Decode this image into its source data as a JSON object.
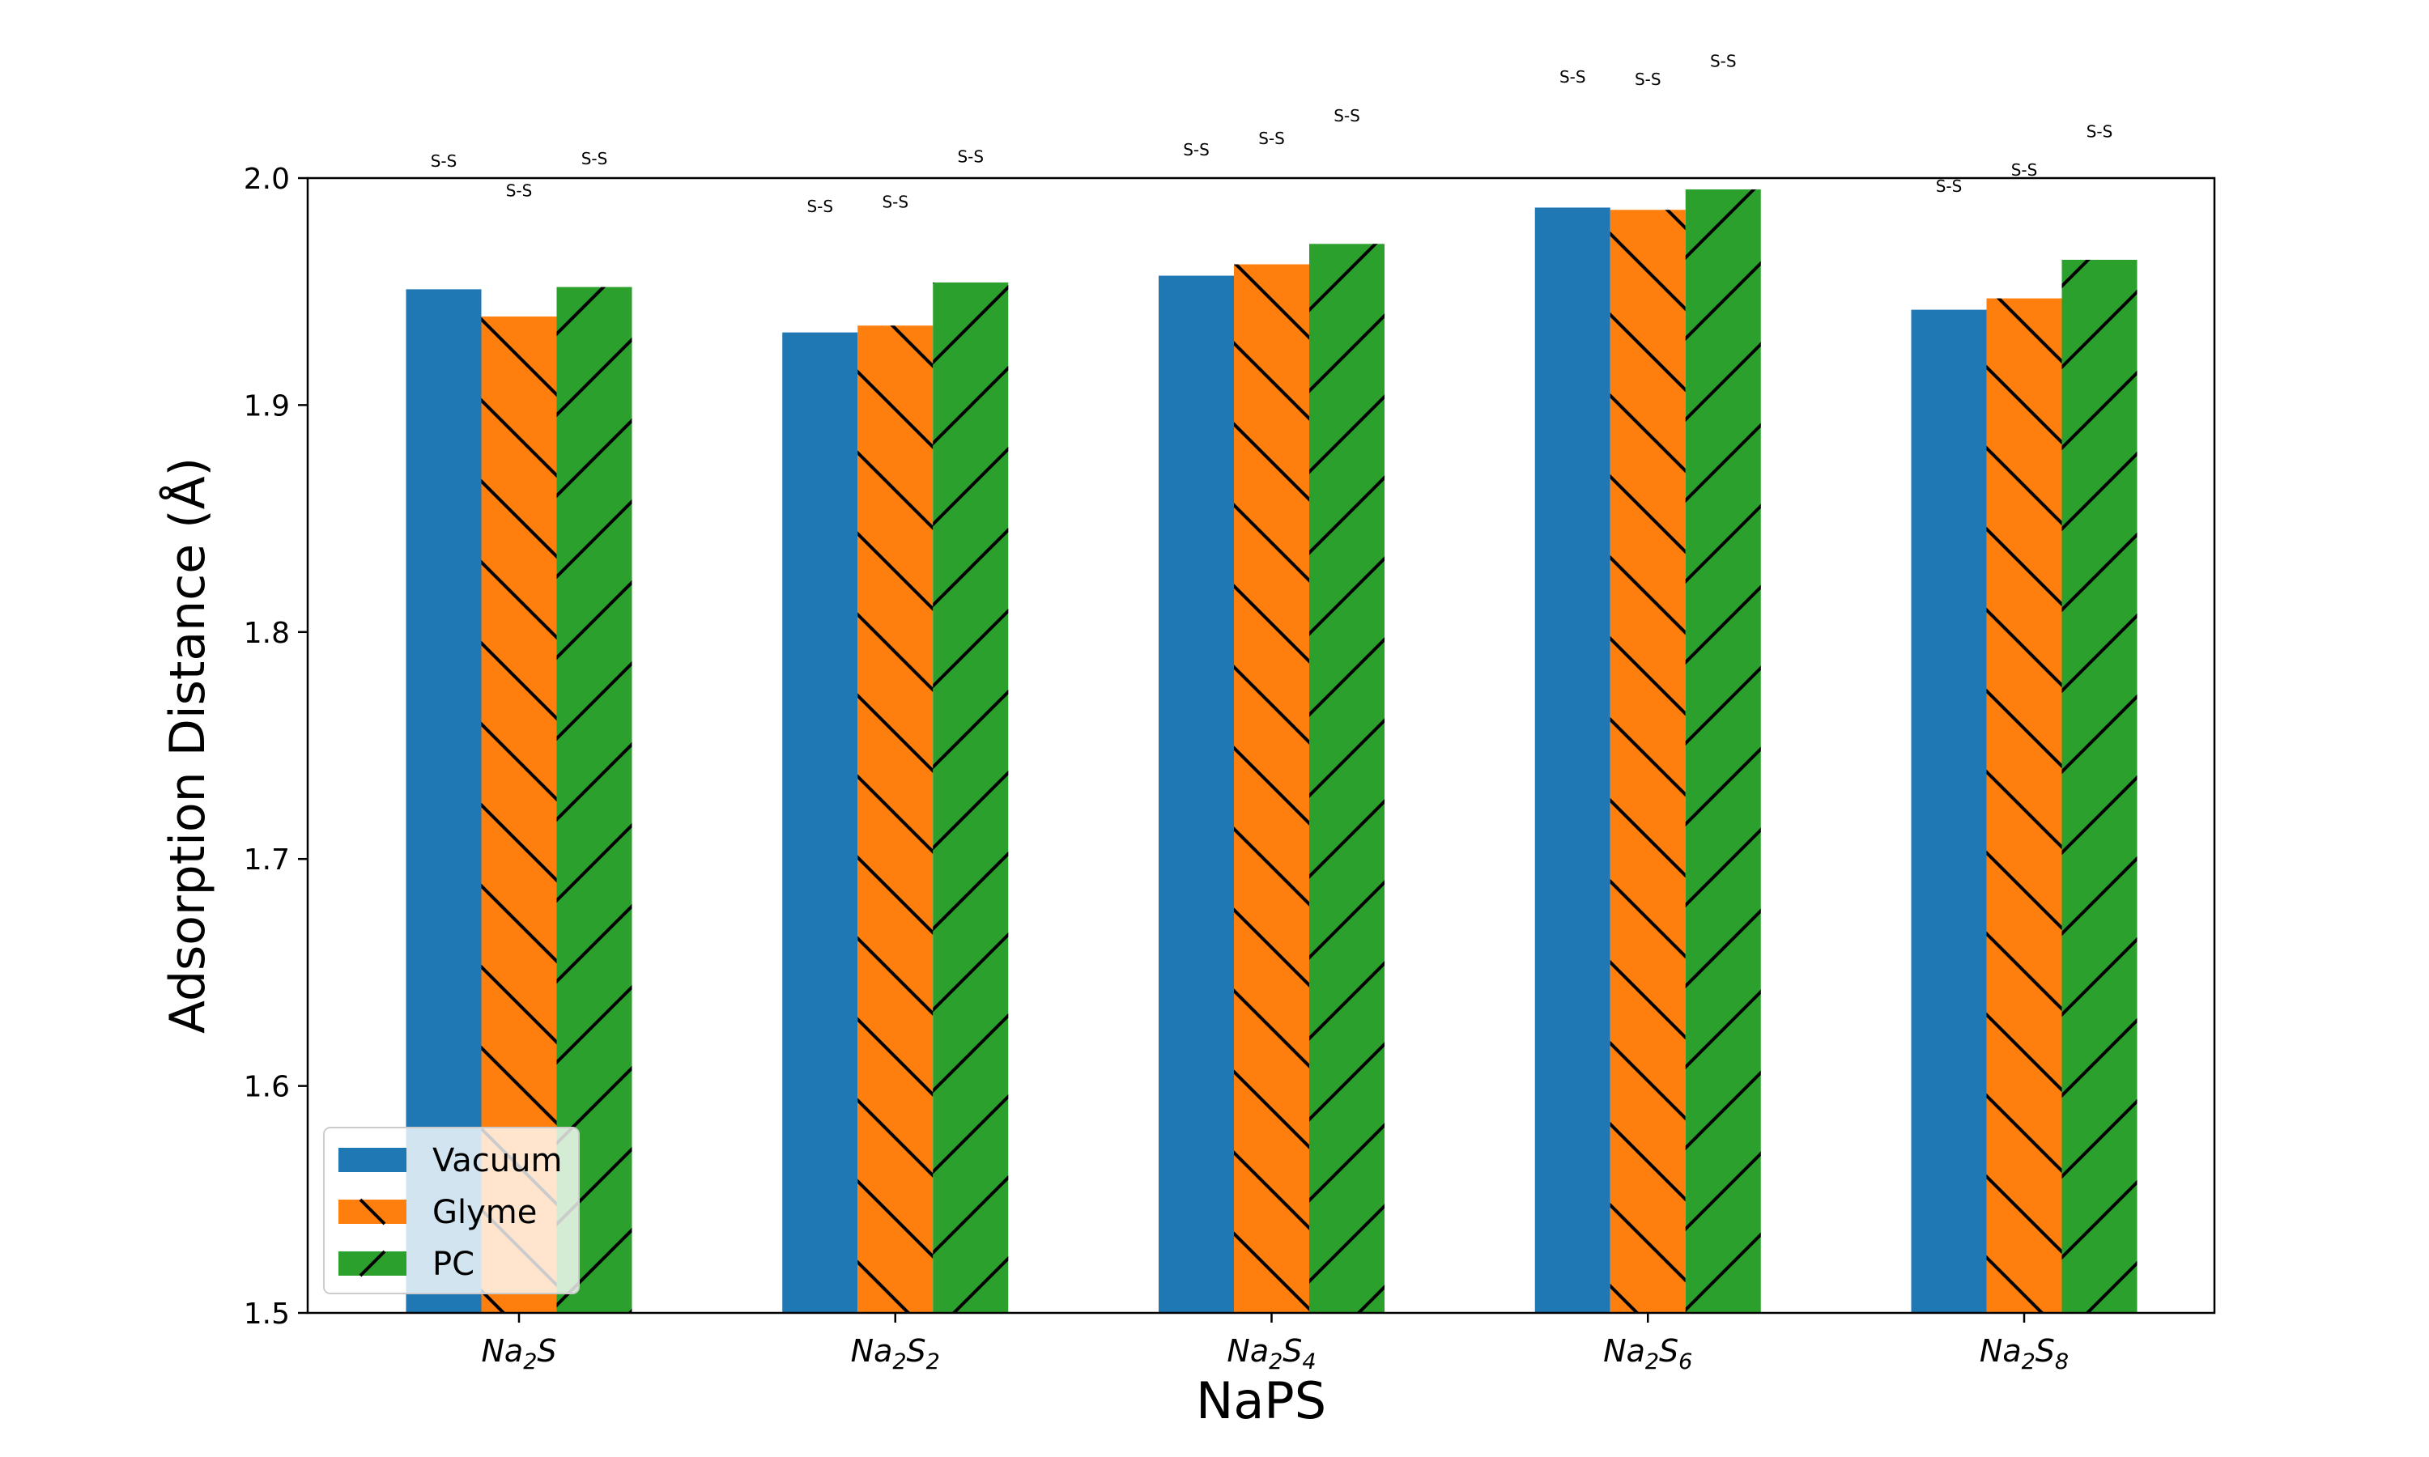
{
  "chart_data": {
    "type": "bar",
    "title": "",
    "xlabel": "NaPS",
    "ylabel": "Adsorption Distance (Å)",
    "ylim": [
      1.5,
      2.0
    ],
    "yticks": [
      "1.5",
      "1.6",
      "1.7",
      "1.8",
      "1.9",
      "2.0"
    ],
    "categories": [
      {
        "base": "Na",
        "sub1": "2",
        "mid": "S",
        "sub2": ""
      },
      {
        "base": "Na",
        "sub1": "2",
        "mid": "S",
        "sub2": "2"
      },
      {
        "base": "Na",
        "sub1": "2",
        "mid": "S",
        "sub2": "4"
      },
      {
        "base": "Na",
        "sub1": "2",
        "mid": "S",
        "sub2": "6"
      },
      {
        "base": "Na",
        "sub1": "2",
        "mid": "S",
        "sub2": "8"
      }
    ],
    "series": [
      {
        "name": "Vacuum",
        "color": "#1f77b4",
        "hatch": "none",
        "values": [
          1.951,
          1.932,
          1.957,
          1.987,
          1.942
        ],
        "annotations": [
          "S-S",
          "S-S",
          "S-S",
          "S-S",
          "S-S"
        ],
        "annotation_values": [
          2.005,
          1.985,
          2.01,
          2.042,
          1.994
        ]
      },
      {
        "name": "Glyme",
        "color": "#ff7f0e",
        "hatch": "backslash",
        "values": [
          1.939,
          1.935,
          1.962,
          1.986,
          1.947
        ],
        "annotations": [
          "S-S",
          "S-S",
          "S-S",
          "S-S",
          "S-S"
        ],
        "annotation_values": [
          1.992,
          1.987,
          2.015,
          2.041,
          2.001
        ]
      },
      {
        "name": "PC",
        "color": "#2ca02c",
        "hatch": "slash",
        "values": [
          1.952,
          1.954,
          1.971,
          1.995,
          1.964
        ],
        "annotations": [
          "S-S",
          "S-S",
          "S-S",
          "S-S",
          "S-S"
        ],
        "annotation_values": [
          2.006,
          2.007,
          2.025,
          2.049,
          2.018
        ]
      }
    ],
    "grid": false,
    "legend_position": "lower-left"
  }
}
